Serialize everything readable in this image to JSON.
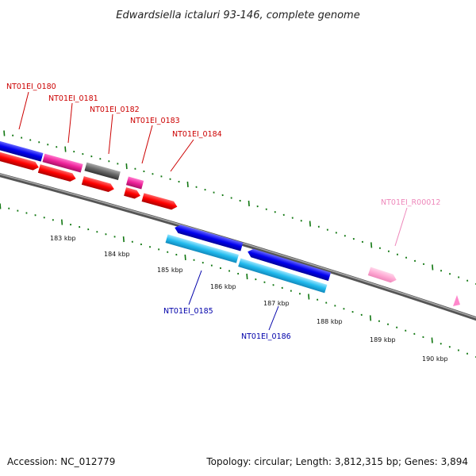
{
  "title": "Edwardsiella ictaluri 93-146, complete genome",
  "footer": {
    "accession": "Accession: NC_012779",
    "summary": "Topology: circular; Length: 3,812,315 bp; Genes: 3,894"
  },
  "scale": {
    "tick_labels": [
      "183 kbp",
      "184 kbp",
      "185 kbp",
      "186 kbp",
      "187 kbp",
      "188 kbp",
      "189 kbp",
      "190 kbp"
    ]
  },
  "genes": [
    {
      "label": "NT01EI_0180",
      "color": "#cc0000"
    },
    {
      "label": "NT01EI_0181",
      "color": "#cc0000"
    },
    {
      "label": "NT01EI_0182",
      "color": "#cc0000"
    },
    {
      "label": "NT01EI_0183",
      "color": "#cc0000"
    },
    {
      "label": "NT01EI_0184",
      "color": "#cc0000"
    },
    {
      "label": "NT01EI_0185",
      "color": "#0000aa"
    },
    {
      "label": "NT01EI_0186",
      "color": "#0000aa"
    },
    {
      "label": "NT01EI_R00012",
      "color": "#ee88bb"
    }
  ],
  "colors": {
    "backbone": "#7f7f7f",
    "tick_green": "#117711",
    "cds_red": "#ff0000",
    "cds_blue": "#0000ee",
    "cds_cyan": "#22bbee",
    "cds_magenta": "#ee2299",
    "cds_gray": "#666666",
    "rna_pink": "#ffaad4"
  }
}
